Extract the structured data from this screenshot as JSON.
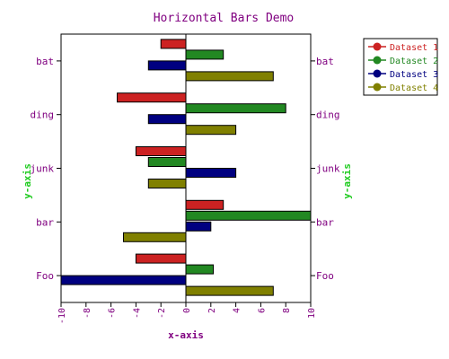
{
  "chart_data": {
    "type": "bar",
    "orientation": "horizontal",
    "title": "Horizontal Bars Demo",
    "xlabel": "x-axis",
    "ylabel": "y-axis",
    "y2label": "y-axis",
    "xlim": [
      -10,
      10
    ],
    "xticks": [
      -10,
      -8,
      -6,
      -4,
      -2,
      0,
      2,
      4,
      6,
      8,
      10
    ],
    "categories": [
      "bat",
      "ding",
      "junk",
      "bar",
      "Foo"
    ],
    "series": [
      {
        "name": "Dataset 1",
        "color": "#cc2222",
        "values": [
          -2,
          -5.5,
          -4,
          3,
          -4
        ]
      },
      {
        "name": "Dataset 2",
        "color": "#228822",
        "values": [
          3,
          8,
          -3,
          10,
          2.2
        ]
      },
      {
        "name": "Dataset 3",
        "color": "#000080",
        "values": [
          -3,
          -3,
          4,
          2,
          -10
        ]
      },
      {
        "name": "Dataset 4",
        "color": "#808000",
        "values": [
          7,
          4,
          -3,
          -5,
          7
        ]
      }
    ],
    "grid": false,
    "legend_position": "top-right",
    "colors": {
      "title": "#800080",
      "axis_label": "#800080",
      "ylabel": "#22cc22",
      "tick_label": "#800080"
    }
  }
}
